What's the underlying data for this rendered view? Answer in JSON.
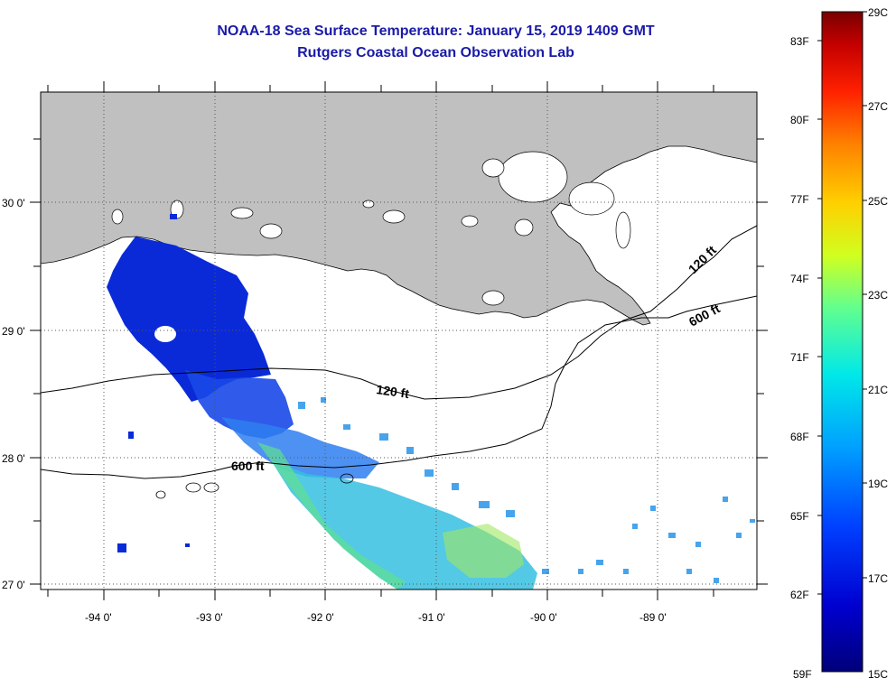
{
  "title": "NOAA-18 Sea Surface Temperature:  January 15, 2019 1409 GMT",
  "subtitle": "Rutgers Coastal Ocean Observation Lab",
  "lat_labels": [
    "30 0'",
    "29 0'",
    "28 0'",
    "27 0'"
  ],
  "lon_labels": [
    "-94 0'",
    "-93 0'",
    "-92 0'",
    "-91 0'",
    "-90 0'",
    "-89 0'"
  ],
  "contour_labels": [
    "120 ft",
    "600 ft",
    "120 ft",
    "600 ft"
  ],
  "colorbar": {
    "fahrenheit_labels": [
      "83F",
      "80F",
      "77F",
      "74F",
      "71F",
      "68F",
      "65F",
      "62F",
      "59F"
    ],
    "celsius_labels": [
      "29C",
      "27C",
      "25C",
      "23C",
      "21C",
      "19C",
      "17C",
      "15C"
    ],
    "colors": [
      "#7a0000",
      "#c40000",
      "#ff2000",
      "#ff8000",
      "#ffd000",
      "#d0ff20",
      "#60ff90",
      "#00e8e8",
      "#00a0ff",
      "#0040ff",
      "#0000c8",
      "#00007a"
    ]
  },
  "colors": {
    "land": "#c0c0c0",
    "ocean": "#ffffff",
    "title": "#1a1aa8"
  }
}
